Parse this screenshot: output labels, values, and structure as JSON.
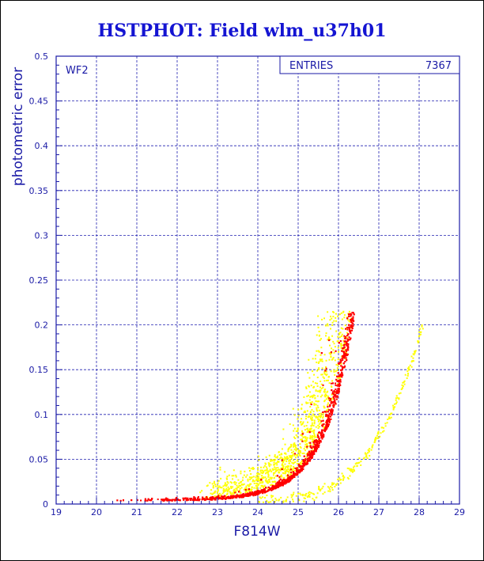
{
  "chart_data": {
    "type": "scatter",
    "title": "HSTPHOT: Field wlm_u37h01",
    "xlabel": "F814W",
    "ylabel": "photometric error",
    "panel_label": "WF2",
    "stats_box": {
      "label": "ENTRIES",
      "value": "7367"
    },
    "xlim": [
      19,
      29
    ],
    "ylim": [
      0,
      0.5
    ],
    "x_ticks": [
      "19",
      "20",
      "21",
      "22",
      "23",
      "24",
      "25",
      "26",
      "27",
      "28",
      "29"
    ],
    "y_ticks": [
      "0",
      "0.05",
      "0.1",
      "0.15",
      "0.2",
      "0.25",
      "0.3",
      "0.35",
      "0.4",
      "0.45",
      "0.5"
    ],
    "grid": true,
    "series": [
      {
        "color": "#ff0000",
        "x_range": [
          20.0,
          26.55
        ],
        "error_curve": {
          "base": 0.003,
          "scale": 2.83e-05,
          "rate": 1.39,
          "x0": 20.0
        },
        "y_max": 0.215
      },
      {
        "color": "#ffff00",
        "x_range": [
          22.5,
          26.5
        ],
        "y_max": 0.215,
        "secondary_sequence": {
          "x_range": [
            24.0,
            28.1
          ],
          "y_range": [
            0.005,
            0.2
          ]
        }
      }
    ]
  },
  "colors": {
    "title": "#1414d2",
    "axis": "#1a1aa6",
    "grid": "#2020b0",
    "frame": "#000000"
  }
}
